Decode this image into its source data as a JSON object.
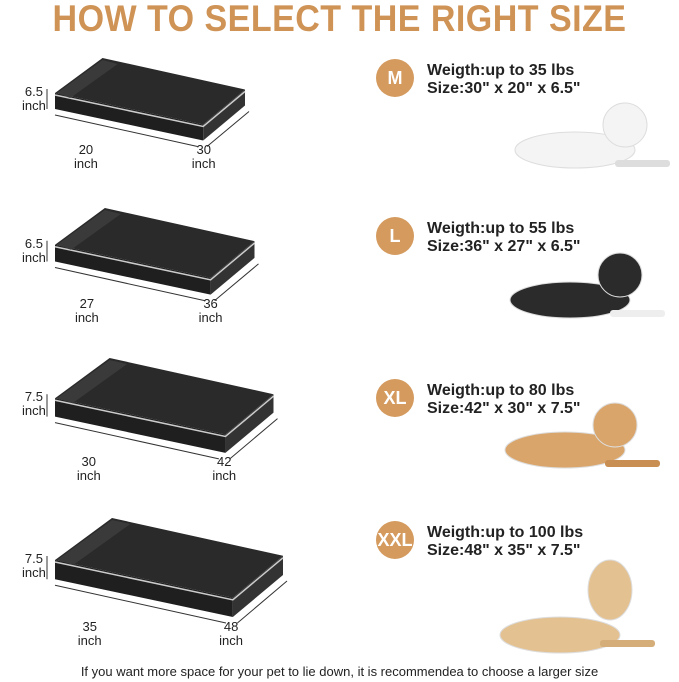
{
  "title": "HOW TO SELECT THE RIGHT SIZE",
  "accent_color": "#d49a5e",
  "sizes": [
    {
      "badge": "M",
      "weight": "Weigth:up to 35 lbs",
      "size": "Size:30\" x 20\" x 6.5\"",
      "height": "6.5",
      "width": "20",
      "length": "30",
      "unit": "inch",
      "dog": "white-small-dog"
    },
    {
      "badge": "L",
      "weight": "Weigth:up to 55 lbs",
      "size": "Size:36\" x 27\" x 6.5\"",
      "height": "6.5",
      "width": "27",
      "length": "36",
      "unit": "inch",
      "dog": "husky"
    },
    {
      "badge": "XL",
      "weight": "Weigth:up to 80 lbs",
      "size": "Size:42\" x 30\" x 7.5\"",
      "height": "7.5",
      "width": "30",
      "length": "42",
      "unit": "inch",
      "dog": "golden-retriever"
    },
    {
      "badge": "XXL",
      "weight": "Weigth:up to 100 lbs",
      "size": "Size:48\" x 35\" x 7.5\"",
      "height": "7.5",
      "width": "35",
      "length": "48",
      "unit": "inch",
      "dog": "labrador"
    }
  ],
  "footer": "If you want more space for your pet to lie down, it is recommendea to choose a larger size"
}
